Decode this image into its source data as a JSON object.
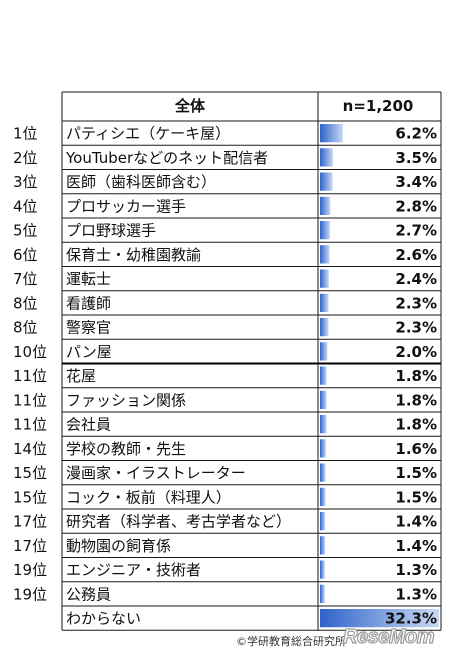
{
  "chart_data": {
    "type": "table",
    "header": {
      "category": "全体",
      "sample": "n=1,200"
    },
    "rows": [
      {
        "rank": "1位",
        "label": "パティシエ（ケーキ屋）",
        "value": 6.2
      },
      {
        "rank": "2位",
        "label": "YouTuberなどのネット配信者",
        "value": 3.5
      },
      {
        "rank": "3位",
        "label": "医師（歯科医師含む）",
        "value": 3.4
      },
      {
        "rank": "4位",
        "label": "プロサッカー選手",
        "value": 2.8
      },
      {
        "rank": "5位",
        "label": "プロ野球選手",
        "value": 2.7
      },
      {
        "rank": "6位",
        "label": "保育士・幼稚園教諭",
        "value": 2.6
      },
      {
        "rank": "7位",
        "label": "運転士",
        "value": 2.4
      },
      {
        "rank": "8位",
        "label": "看護師",
        "value": 2.3
      },
      {
        "rank": "8位",
        "label": "警察官",
        "value": 2.3
      },
      {
        "rank": "10位",
        "label": "パン屋",
        "value": 2.0
      },
      {
        "rank": "11位",
        "label": "花屋",
        "value": 1.8
      },
      {
        "rank": "11位",
        "label": "ファッション関係",
        "value": 1.8
      },
      {
        "rank": "11位",
        "label": "会社員",
        "value": 1.8
      },
      {
        "rank": "14位",
        "label": "学校の教師・先生",
        "value": 1.6
      },
      {
        "rank": "15位",
        "label": "漫画家・イラストレーター",
        "value": 1.5
      },
      {
        "rank": "15位",
        "label": "コック・板前（料理人）",
        "value": 1.5
      },
      {
        "rank": "17位",
        "label": "研究者（科学者、考古学者など）",
        "value": 1.4
      },
      {
        "rank": "17位",
        "label": "動物園の飼育係",
        "value": 1.4
      },
      {
        "rank": "19位",
        "label": "エンジニア・技術者",
        "value": 1.3
      },
      {
        "rank": "19位",
        "label": "公務員",
        "value": 1.3
      },
      {
        "rank": "",
        "label": "わからない",
        "value": 32.3
      }
    ],
    "value_suffix": "%",
    "bar_max": 32.3,
    "bar_color": "#4f7fd6"
  },
  "credit": "©学研教育総合研究所",
  "logo": "ReseMom"
}
